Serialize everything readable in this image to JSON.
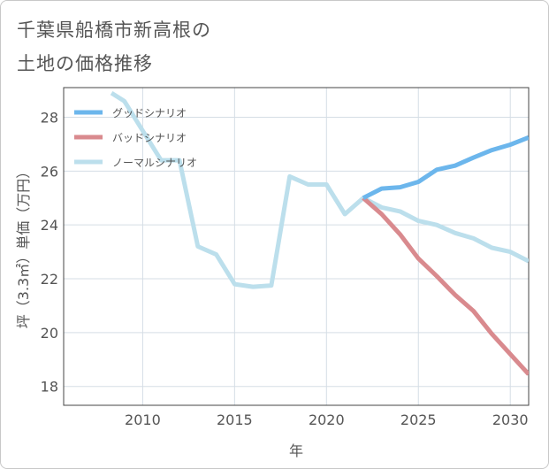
{
  "title_line1": "千葉県船橋市新高根の",
  "title_line2": "土地の価格推移",
  "chart_data": {
    "type": "line",
    "xlabel": "年",
    "ylabel": "坪（3.3㎡）単価（万円）",
    "xlim": [
      2005.7,
      2031
    ],
    "ylim": [
      17.3,
      29.1
    ],
    "x_ticks": [
      2010,
      2015,
      2020,
      2025,
      2030
    ],
    "y_ticks": [
      18,
      20,
      22,
      24,
      26,
      28
    ],
    "grid": true,
    "legend_position": "top-left",
    "series": [
      {
        "name": "グッドシナリオ",
        "color": "#6cb6ec",
        "x": [
          2022,
          2023,
          2024,
          2025,
          2026,
          2027,
          2028,
          2029,
          2030,
          2031
        ],
        "values": [
          25.0,
          25.35,
          25.4,
          25.6,
          26.05,
          26.2,
          26.5,
          26.78,
          26.98,
          27.25
        ]
      },
      {
        "name": "バッドシナリオ",
        "color": "#d98a8e",
        "x": [
          2022,
          2023,
          2024,
          2025,
          2026,
          2027,
          2028,
          2029,
          2030,
          2031
        ],
        "values": [
          25.0,
          24.4,
          23.65,
          22.75,
          22.1,
          21.4,
          20.8,
          19.95,
          19.2,
          18.45
        ]
      },
      {
        "name": "ノーマルシナリオ",
        "color": "#bcdfec",
        "x": [
          2008.3,
          2009,
          2010,
          2011,
          2012,
          2013,
          2014,
          2015,
          2016,
          2017,
          2018,
          2019,
          2020,
          2021,
          2022,
          2023,
          2024,
          2025,
          2026,
          2027,
          2028,
          2029,
          2030,
          2031
        ],
        "values": [
          28.9,
          28.6,
          27.5,
          26.4,
          26.4,
          23.2,
          22.9,
          21.8,
          21.7,
          21.75,
          25.8,
          25.5,
          25.5,
          24.4,
          25.0,
          24.65,
          24.5,
          24.15,
          24.0,
          23.7,
          23.5,
          23.15,
          23.0,
          22.65
        ]
      }
    ]
  }
}
